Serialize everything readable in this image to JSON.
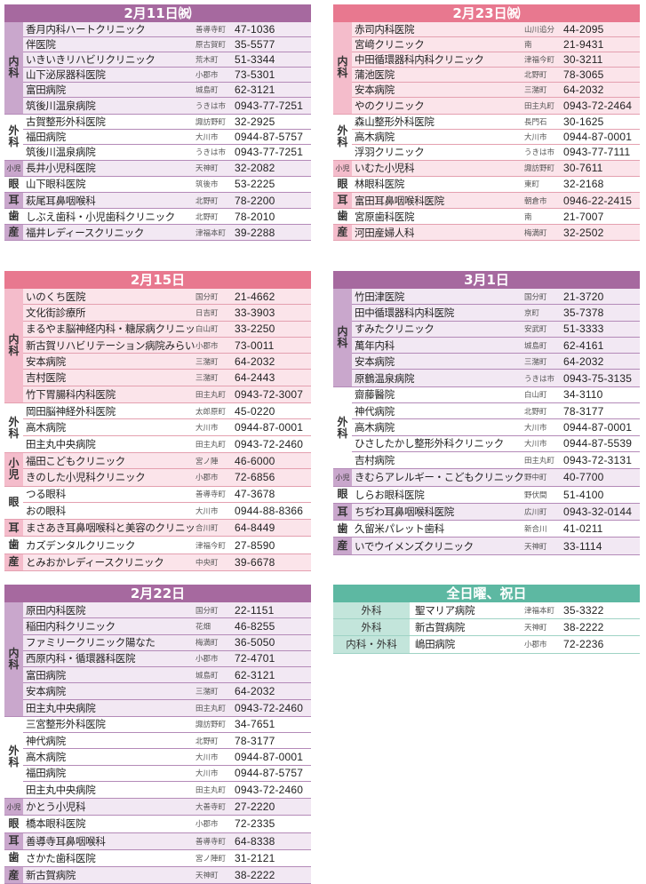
{
  "colors": {
    "purple": "#a6699f",
    "pink": "#e8788f",
    "teal": "#5db8a2"
  },
  "blocks": [
    {
      "title": "2月11日㈷",
      "theme": "purple",
      "groups": [
        {
          "dept": "内科",
          "shaded": true,
          "style": "stack",
          "rows": [
            {
              "name": "香月内科ハートクリニック",
              "area": "善導寺町",
              "phone": "47-1036"
            },
            {
              "name": "伴医院",
              "area": "原古賀町",
              "phone": "35-5577"
            },
            {
              "name": "いきいきリハビリクリニック",
              "area": "荒木町",
              "phone": "51-3344"
            },
            {
              "name": "山下泌尿器科医院",
              "area": "小郡市",
              "phone": "73-5301"
            },
            {
              "name": "富田病院",
              "area": "城島町",
              "phone": "62-3121"
            },
            {
              "name": "筑後川温泉病院",
              "area": "うきは市",
              "phone": "0943-77-7251"
            }
          ]
        },
        {
          "dept": "外科",
          "shaded": false,
          "style": "stack",
          "rows": [
            {
              "name": "古賀整形外科医院",
              "area": "諏訪野町",
              "phone": "32-2925"
            },
            {
              "name": "福田病院",
              "area": "大川市",
              "phone": "0944-87-5757"
            },
            {
              "name": "筑後川温泉病院",
              "area": "うきは市",
              "phone": "0943-77-7251"
            }
          ]
        },
        {
          "dept": "小児",
          "shaded": true,
          "style": "small",
          "rows": [
            {
              "name": "長井小児科医院",
              "area": "天神町",
              "phone": "32-2082"
            }
          ]
        },
        {
          "dept": "眼",
          "shaded": false,
          "style": "",
          "rows": [
            {
              "name": "山下眼科医院",
              "area": "筑後市",
              "phone": "53-2225"
            }
          ]
        },
        {
          "dept": "耳",
          "shaded": true,
          "style": "",
          "rows": [
            {
              "name": "萩尾耳鼻咽喉科",
              "area": "北野町",
              "phone": "78-2200"
            }
          ]
        },
        {
          "dept": "歯",
          "shaded": false,
          "style": "",
          "rows": [
            {
              "name": "しぶえ歯科・小児歯科クリニック",
              "area": "北野町",
              "phone": "78-2010"
            }
          ]
        },
        {
          "dept": "産",
          "shaded": true,
          "style": "",
          "rows": [
            {
              "name": "福井レディースクリニック",
              "area": "津福本町",
              "phone": "39-2288"
            }
          ]
        }
      ]
    },
    {
      "title": "2月23日㈷",
      "theme": "pink",
      "groups": [
        {
          "dept": "内科",
          "shaded": true,
          "style": "stack",
          "rows": [
            {
              "name": "赤司内科医院",
              "area": "山川追分",
              "phone": "44-2095"
            },
            {
              "name": "宮﨑クリニック",
              "area": "南",
              "phone": "21-9431"
            },
            {
              "name": "中田循環器科内科クリニック",
              "area": "津福今町",
              "phone": "30-3211"
            },
            {
              "name": "蒲池医院",
              "area": "北野町",
              "phone": "78-3065"
            },
            {
              "name": "安本病院",
              "area": "三潴町",
              "phone": "64-2032"
            },
            {
              "name": "やのクリニック",
              "area": "田主丸町",
              "phone": "0943-72-2464"
            }
          ]
        },
        {
          "dept": "外科",
          "shaded": false,
          "style": "stack",
          "rows": [
            {
              "name": "森山整形外科医院",
              "area": "長門石",
              "phone": "30-1625"
            },
            {
              "name": "高木病院",
              "area": "大川市",
              "phone": "0944-87-0001"
            },
            {
              "name": "浮羽クリニック",
              "area": "うきは市",
              "phone": "0943-77-7111"
            }
          ]
        },
        {
          "dept": "小児",
          "shaded": true,
          "style": "small",
          "rows": [
            {
              "name": "いむた小児科",
              "area": "諏訪野町",
              "phone": "30-7611"
            }
          ]
        },
        {
          "dept": "眼",
          "shaded": false,
          "style": "",
          "rows": [
            {
              "name": "林眼科医院",
              "area": "東町",
              "phone": "32-2168"
            }
          ]
        },
        {
          "dept": "耳",
          "shaded": true,
          "style": "",
          "rows": [
            {
              "name": "富田耳鼻咽喉科医院",
              "area": "朝倉市",
              "phone": "0946-22-2415"
            }
          ]
        },
        {
          "dept": "歯",
          "shaded": false,
          "style": "",
          "rows": [
            {
              "name": "宮原歯科医院",
              "area": "南",
              "phone": "21-7007"
            }
          ]
        },
        {
          "dept": "産",
          "shaded": true,
          "style": "",
          "rows": [
            {
              "name": "河田産婦人科",
              "area": "梅満町",
              "phone": "32-2502"
            }
          ]
        }
      ]
    },
    {
      "title": "2月15日",
      "theme": "pink",
      "groups": [
        {
          "dept": "内科",
          "shaded": true,
          "style": "stack",
          "rows": [
            {
              "name": "いのくち医院",
              "area": "国分町",
              "phone": "21-4662"
            },
            {
              "name": "文化街診療所",
              "area": "日吉町",
              "phone": "33-3903"
            },
            {
              "name": "まるやま脳神経内科・糖尿病クリニック",
              "area": "白山町",
              "phone": "33-2250"
            },
            {
              "name": "新古賀リハビリテーション病院みらい",
              "area": "小郡市",
              "phone": "73-0011"
            },
            {
              "name": "安本病院",
              "area": "三潴町",
              "phone": "64-2032"
            },
            {
              "name": "吉村医院",
              "area": "三潴町",
              "phone": "64-2443"
            },
            {
              "name": "竹下胃腸科内科医院",
              "area": "田主丸町",
              "phone": "0943-72-3007"
            }
          ]
        },
        {
          "dept": "外科",
          "shaded": false,
          "style": "stack",
          "rows": [
            {
              "name": "岡田脳神経外科医院",
              "area": "太郎原町",
              "phone": "45-0220"
            },
            {
              "name": "高木病院",
              "area": "大川市",
              "phone": "0944-87-0001"
            },
            {
              "name": "田主丸中央病院",
              "area": "田主丸町",
              "phone": "0943-72-2460"
            }
          ]
        },
        {
          "dept": "小児",
          "shaded": true,
          "style": "stack",
          "rows": [
            {
              "name": "福田こどもクリニック",
              "area": "宮ノ陣",
              "phone": "46-6000"
            },
            {
              "name": "きのした小児科クリニック",
              "area": "小郡市",
              "phone": "72-6856"
            }
          ]
        },
        {
          "dept": "眼",
          "shaded": false,
          "style": "",
          "rows": [
            {
              "name": "つる眼科",
              "area": "善導寺町",
              "phone": "47-3678"
            },
            {
              "name": "おの眼科",
              "area": "大川市",
              "phone": "0944-88-8366"
            }
          ]
        },
        {
          "dept": "耳",
          "shaded": true,
          "style": "",
          "rows": [
            {
              "name": "まさあき耳鼻咽喉科と美容のクリニック",
              "area": "合川町",
              "phone": "64-8449"
            }
          ]
        },
        {
          "dept": "歯",
          "shaded": false,
          "style": "",
          "rows": [
            {
              "name": "カズデンタルクリニック",
              "area": "津福今町",
              "phone": "27-8590"
            }
          ]
        },
        {
          "dept": "産",
          "shaded": true,
          "style": "",
          "rows": [
            {
              "name": "とみおかレディースクリニック",
              "area": "中央町",
              "phone": "39-6678"
            }
          ]
        }
      ]
    },
    {
      "title": "3月1日",
      "theme": "purple",
      "groups": [
        {
          "dept": "内科",
          "shaded": true,
          "style": "stack",
          "rows": [
            {
              "name": "竹田津医院",
              "area": "国分町",
              "phone": "21-3720"
            },
            {
              "name": "田中循環器科内科医院",
              "area": "京町",
              "phone": "35-7378"
            },
            {
              "name": "すみたクリニック",
              "area": "安武町",
              "phone": "51-3333"
            },
            {
              "name": "萬年内科",
              "area": "城島町",
              "phone": "62-4161"
            },
            {
              "name": "安本病院",
              "area": "三潴町",
              "phone": "64-2032"
            },
            {
              "name": "原鶴温泉病院",
              "area": "うきは市",
              "phone": "0943-75-3135"
            }
          ]
        },
        {
          "dept": "外科",
          "shaded": false,
          "style": "stack",
          "rows": [
            {
              "name": "齋藤醫院",
              "area": "白山町",
              "phone": "34-3110"
            },
            {
              "name": "神代病院",
              "area": "北野町",
              "phone": "78-3177"
            },
            {
              "name": "高木病院",
              "area": "大川市",
              "phone": "0944-87-0001"
            },
            {
              "name": "ひさしたかし整形外科クリニック",
              "area": "大川市",
              "phone": "0944-87-5539"
            },
            {
              "name": "吉村病院",
              "area": "田主丸町",
              "phone": "0943-72-3131"
            }
          ]
        },
        {
          "dept": "小児",
          "shaded": true,
          "style": "small",
          "rows": [
            {
              "name": "きむらアレルギー・こどもクリニック",
              "area": "野中町",
              "phone": "40-7700"
            }
          ]
        },
        {
          "dept": "眼",
          "shaded": false,
          "style": "",
          "rows": [
            {
              "name": "しらお眼科医院",
              "area": "野伏間",
              "phone": "51-4100"
            }
          ]
        },
        {
          "dept": "耳",
          "shaded": true,
          "style": "",
          "rows": [
            {
              "name": "ちぢわ耳鼻咽喉科医院",
              "area": "広川町",
              "phone": "0943-32-0144"
            }
          ]
        },
        {
          "dept": "歯",
          "shaded": false,
          "style": "",
          "rows": [
            {
              "name": "久留米パレット歯科",
              "area": "新合川",
              "phone": "41-0211"
            }
          ]
        },
        {
          "dept": "産",
          "shaded": true,
          "style": "",
          "rows": [
            {
              "name": "いでウイメンズクリニック",
              "area": "天神町",
              "phone": "33-1114"
            }
          ]
        }
      ]
    },
    {
      "title": "2月22日",
      "theme": "purple",
      "groups": [
        {
          "dept": "内科",
          "shaded": true,
          "style": "stack",
          "rows": [
            {
              "name": "原田内科医院",
              "area": "国分町",
              "phone": "22-1151"
            },
            {
              "name": "稲田内科クリニック",
              "area": "花畑",
              "phone": "46-8255"
            },
            {
              "name": "ファミリークリニック陽なた",
              "area": "梅満町",
              "phone": "36-5050"
            },
            {
              "name": "西原内科・循環器科医院",
              "area": "小郡市",
              "phone": "72-4701"
            },
            {
              "name": "富田病院",
              "area": "城島町",
              "phone": "62-3121"
            },
            {
              "name": "安本病院",
              "area": "三潴町",
              "phone": "64-2032"
            },
            {
              "name": "田主丸中央病院",
              "area": "田主丸町",
              "phone": "0943-72-2460"
            }
          ]
        },
        {
          "dept": "外科",
          "shaded": false,
          "style": "stack",
          "rows": [
            {
              "name": "三宮整形外科医院",
              "area": "諏訪野町",
              "phone": "34-7651"
            },
            {
              "name": "神代病院",
              "area": "北野町",
              "phone": "78-3177"
            },
            {
              "name": "高木病院",
              "area": "大川市",
              "phone": "0944-87-0001"
            },
            {
              "name": "福田病院",
              "area": "大川市",
              "phone": "0944-87-5757"
            },
            {
              "name": "田主丸中央病院",
              "area": "田主丸町",
              "phone": "0943-72-2460"
            }
          ]
        },
        {
          "dept": "小児",
          "shaded": true,
          "style": "small",
          "rows": [
            {
              "name": "かとう小児科",
              "area": "大善寺町",
              "phone": "27-2220"
            }
          ]
        },
        {
          "dept": "眼",
          "shaded": false,
          "style": "",
          "rows": [
            {
              "name": "橋本眼科医院",
              "area": "小郡市",
              "phone": "72-2335"
            }
          ]
        },
        {
          "dept": "耳",
          "shaded": true,
          "style": "",
          "rows": [
            {
              "name": "善導寺耳鼻咽喉科",
              "area": "善導寺町",
              "phone": "64-8338"
            }
          ]
        },
        {
          "dept": "歯",
          "shaded": false,
          "style": "",
          "rows": [
            {
              "name": "さかた歯科医院",
              "area": "宮ノ陣町",
              "phone": "31-2121"
            }
          ]
        },
        {
          "dept": "産",
          "shaded": true,
          "style": "",
          "rows": [
            {
              "name": "新古賀病院",
              "area": "天神町",
              "phone": "38-2222"
            }
          ]
        }
      ]
    },
    {
      "title": "全日曜、祝日",
      "theme": "teal",
      "groups": [
        {
          "dept": "外科",
          "shaded": false,
          "style": "",
          "rows": [
            {
              "name": "聖マリア病院",
              "area": "津福本町",
              "phone": "35-3322"
            }
          ]
        },
        {
          "dept": "外科",
          "shaded": false,
          "style": "",
          "rows": [
            {
              "name": "新古賀病院",
              "area": "天神町",
              "phone": "38-2222"
            }
          ]
        },
        {
          "dept": "内科・外科",
          "shaded": false,
          "style": "",
          "rows": [
            {
              "name": "嶋田病院",
              "area": "小郡市",
              "phone": "72-2236"
            }
          ]
        }
      ]
    }
  ]
}
